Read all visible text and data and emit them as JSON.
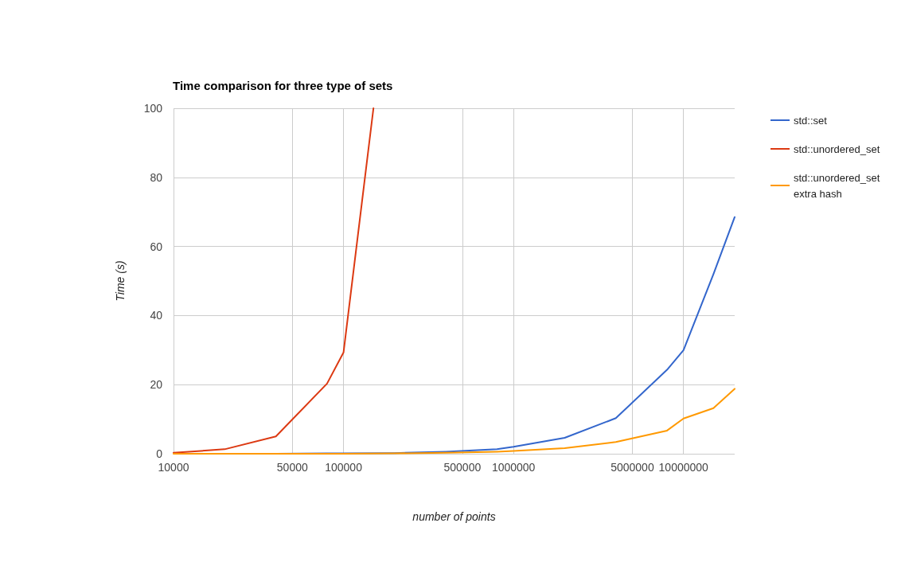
{
  "chart_data": {
    "type": "line",
    "title": "Time comparison for three type of sets",
    "xlabel": "number of points",
    "ylabel": "Time (s)",
    "log": "x",
    "xlim": [
      10000,
      20000000
    ],
    "xticks": [
      10000,
      50000,
      100000,
      500000,
      1000000,
      5000000,
      10000000
    ],
    "ylim": [
      0,
      100
    ],
    "yticks": [
      0,
      20,
      40,
      60,
      80,
      100
    ],
    "grid": true,
    "legend": "right",
    "marker": "none",
    "line_style": "solid",
    "series": [
      {
        "name": "std::set",
        "color": "#3366cc",
        "x": [
          40000,
          80000,
          100000,
          200000,
          400000,
          800000,
          1000000,
          2000000,
          4000000,
          8000000,
          10000000,
          15000000,
          20000000
        ],
        "values": [
          0,
          0.1,
          0.1,
          0.2,
          0.6,
          1.3,
          2,
          4.6,
          10.3,
          24.3,
          30,
          52,
          68.5
        ]
      },
      {
        "name": "std::unordered_set",
        "color": "#dc3912",
        "x": [
          10000,
          20000,
          40000,
          80000,
          100000,
          150000
        ],
        "values": [
          0.3,
          1.3,
          5,
          20.3,
          29.3,
          100
        ]
      },
      {
        "name": "std::unordered_set extra hash",
        "color": "#ff9900",
        "x": [
          10000,
          20000,
          40000,
          80000,
          100000,
          200000,
          400000,
          800000,
          1000000,
          2000000,
          4000000,
          8000000,
          10000000,
          15000000,
          20000000
        ],
        "values": [
          0,
          0,
          0,
          0,
          0,
          0.1,
          0.3,
          0.6,
          0.8,
          1.6,
          3.4,
          6.7,
          10.2,
          13.2,
          18.8
        ]
      }
    ]
  }
}
